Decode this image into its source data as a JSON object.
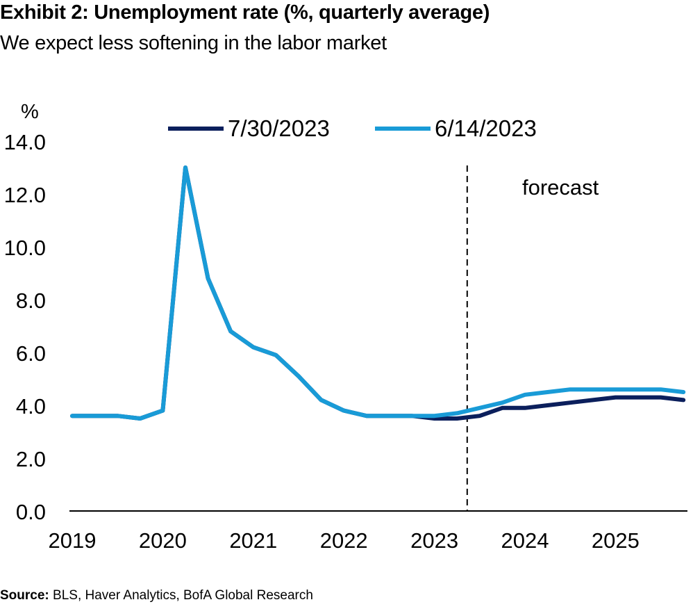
{
  "header": {
    "title": "Exhibit 2: Unemployment rate (%, quarterly average)",
    "subtitle": "We expect less softening in the labor market"
  },
  "footer": {
    "source_label": "Source:",
    "source_text": "BLS, Haver Analytics, BofA Global Research"
  },
  "colors": {
    "series_jul": "#0b1f5c",
    "series_jun": "#199bd7",
    "axis": "#000000"
  },
  "chart_data": {
    "type": "line",
    "title": "Exhibit 2: Unemployment rate (%, quarterly average)",
    "subtitle": "We expect less softening in the labor market",
    "ylabel": "%",
    "xlabel": "",
    "ylim": [
      0,
      14
    ],
    "y_ticks": [
      "0.0",
      "2.0",
      "4.0",
      "6.0",
      "8.0",
      "10.0",
      "12.0",
      "14.0"
    ],
    "x_ticks": [
      "2019",
      "2020",
      "2021",
      "2022",
      "2023",
      "2024",
      "2025"
    ],
    "grid": false,
    "legend_position": "top",
    "annotation": "forecast",
    "forecast_start": "2023 Q3",
    "x": [
      "2019 Q1",
      "2019 Q2",
      "2019 Q3",
      "2019 Q4",
      "2020 Q1",
      "2020 Q2",
      "2020 Q3",
      "2020 Q4",
      "2021 Q1",
      "2021 Q2",
      "2021 Q3",
      "2021 Q4",
      "2022 Q1",
      "2022 Q2",
      "2022 Q3",
      "2022 Q4",
      "2023 Q1",
      "2023 Q2",
      "2023 Q3",
      "2023 Q4",
      "2024 Q1",
      "2024 Q2",
      "2024 Q3",
      "2024 Q4",
      "2025 Q1",
      "2025 Q2",
      "2025 Q3",
      "2025 Q4"
    ],
    "series": [
      {
        "name": "7/30/2023",
        "color": "#0b1f5c",
        "values": [
          3.6,
          3.6,
          3.6,
          3.5,
          3.8,
          13.0,
          8.8,
          6.8,
          6.2,
          5.9,
          5.1,
          4.2,
          3.8,
          3.6,
          3.6,
          3.6,
          3.5,
          3.5,
          3.6,
          3.9,
          3.9,
          4.0,
          4.1,
          4.2,
          4.3,
          4.3,
          4.3,
          4.2
        ]
      },
      {
        "name": "6/14/2023",
        "color": "#199bd7",
        "values": [
          3.6,
          3.6,
          3.6,
          3.5,
          3.8,
          13.0,
          8.8,
          6.8,
          6.2,
          5.9,
          5.1,
          4.2,
          3.8,
          3.6,
          3.6,
          3.6,
          3.6,
          3.7,
          3.9,
          4.1,
          4.4,
          4.5,
          4.6,
          4.6,
          4.6,
          4.6,
          4.6,
          4.5
        ]
      }
    ]
  }
}
